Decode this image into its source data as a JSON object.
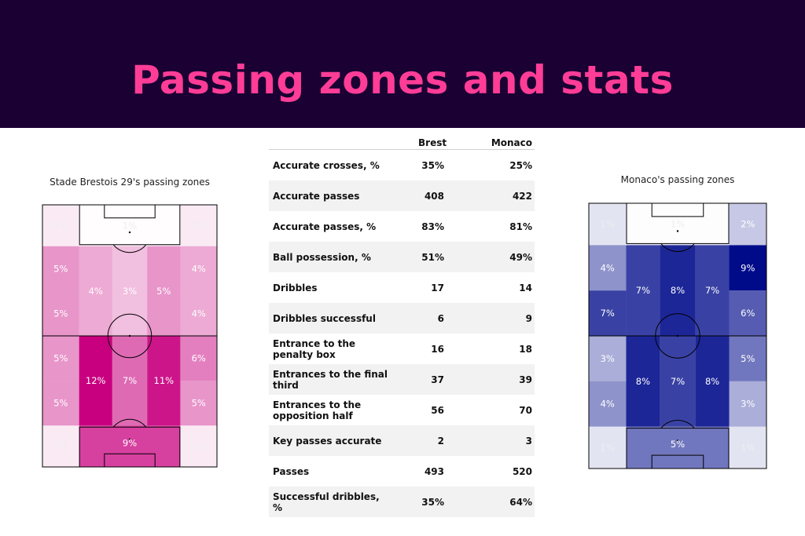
{
  "header": {
    "title": "Passing zones and stats"
  },
  "table": {
    "col1": "Brest",
    "col2": "Monaco",
    "rows": [
      {
        "label": "Accurate crosses, %",
        "brest": "35%",
        "monaco": "25%"
      },
      {
        "label": "Accurate passes",
        "brest": "408",
        "monaco": "422"
      },
      {
        "label": "Accurate passes, %",
        "brest": "83%",
        "monaco": "81%"
      },
      {
        "label": "Ball possession, %",
        "brest": "51%",
        "monaco": "49%"
      },
      {
        "label": "Dribbles",
        "brest": "17",
        "monaco": "14"
      },
      {
        "label": "Dribbles successful",
        "brest": "6",
        "monaco": "9"
      },
      {
        "label": "Entrance to the penalty box",
        "brest": "16",
        "monaco": "18"
      },
      {
        "label": "Entrances to the final third",
        "brest": "37",
        "monaco": "39"
      },
      {
        "label": "Entrances to the opposition half",
        "brest": "56",
        "monaco": "70"
      },
      {
        "label": "Key passes accurate",
        "brest": "2",
        "monaco": "3"
      },
      {
        "label": "Passes",
        "brest": "493",
        "monaco": "520"
      },
      {
        "label": "Successful dribbles, %",
        "brest": "35%",
        "monaco": "64%"
      }
    ]
  },
  "chart_data": [
    {
      "type": "heatmap",
      "title": "Stade Brestois 29's passing zones",
      "color": "#c8007f",
      "max": 12,
      "zones": [
        {
          "zone": "top-left",
          "value": 1,
          "label": "1%"
        },
        {
          "zone": "top-center",
          "value": 1,
          "label": "1%"
        },
        {
          "zone": "top-right",
          "value": 1,
          "label": "1%"
        },
        {
          "zone": "left-upper-1",
          "value": 5,
          "label": "5%"
        },
        {
          "zone": "left-upper-2",
          "value": 5,
          "label": "5%"
        },
        {
          "zone": "halfspace-left-upper",
          "value": 4,
          "label": "4%"
        },
        {
          "zone": "center-upper",
          "value": 3,
          "label": "3%"
        },
        {
          "zone": "halfspace-right-upper",
          "value": 5,
          "label": "5%"
        },
        {
          "zone": "right-upper-1",
          "value": 4,
          "label": "4%"
        },
        {
          "zone": "right-upper-2",
          "value": 4,
          "label": "4%"
        },
        {
          "zone": "left-lower-1",
          "value": 5,
          "label": "5%"
        },
        {
          "zone": "left-lower-2",
          "value": 5,
          "label": "5%"
        },
        {
          "zone": "halfspace-left-lower",
          "value": 12,
          "label": "12%"
        },
        {
          "zone": "center-lower",
          "value": 7,
          "label": "7%"
        },
        {
          "zone": "halfspace-right-lower",
          "value": 11,
          "label": "11%"
        },
        {
          "zone": "right-lower-1",
          "value": 6,
          "label": "6%"
        },
        {
          "zone": "right-lower-2",
          "value": 5,
          "label": "5%"
        },
        {
          "zone": "bottom-left",
          "value": 1,
          "label": "1%"
        },
        {
          "zone": "bottom-center",
          "value": 9,
          "label": "9%"
        },
        {
          "zone": "bottom-right",
          "value": 1,
          "label": "1%"
        }
      ]
    },
    {
      "type": "heatmap",
      "title": "Monaco's passing zones",
      "color": "#000b8a",
      "max": 9,
      "zones": [
        {
          "zone": "top-left",
          "value": 1,
          "label": "1%"
        },
        {
          "zone": "top-center",
          "value": 1,
          "label": "1%"
        },
        {
          "zone": "top-right",
          "value": 2,
          "label": "2%"
        },
        {
          "zone": "left-upper-1",
          "value": 4,
          "label": "4%"
        },
        {
          "zone": "left-upper-2",
          "value": 7,
          "label": "7%"
        },
        {
          "zone": "halfspace-left-upper",
          "value": 7,
          "label": "7%"
        },
        {
          "zone": "center-upper",
          "value": 8,
          "label": "8%"
        },
        {
          "zone": "halfspace-right-upper",
          "value": 7,
          "label": "7%"
        },
        {
          "zone": "right-upper-1",
          "value": 9,
          "label": "9%"
        },
        {
          "zone": "right-upper-2",
          "value": 6,
          "label": "6%"
        },
        {
          "zone": "left-lower-1",
          "value": 3,
          "label": "3%"
        },
        {
          "zone": "left-lower-2",
          "value": 4,
          "label": "4%"
        },
        {
          "zone": "halfspace-left-lower",
          "value": 8,
          "label": "8%"
        },
        {
          "zone": "center-lower",
          "value": 7,
          "label": "7%"
        },
        {
          "zone": "halfspace-right-lower",
          "value": 8,
          "label": "8%"
        },
        {
          "zone": "right-lower-1",
          "value": 5,
          "label": "5%"
        },
        {
          "zone": "right-lower-2",
          "value": 3,
          "label": "3%"
        },
        {
          "zone": "bottom-left",
          "value": 1,
          "label": "1%"
        },
        {
          "zone": "bottom-center",
          "value": 5,
          "label": "5%"
        },
        {
          "zone": "bottom-right",
          "value": 1,
          "label": "1%"
        }
      ]
    }
  ]
}
